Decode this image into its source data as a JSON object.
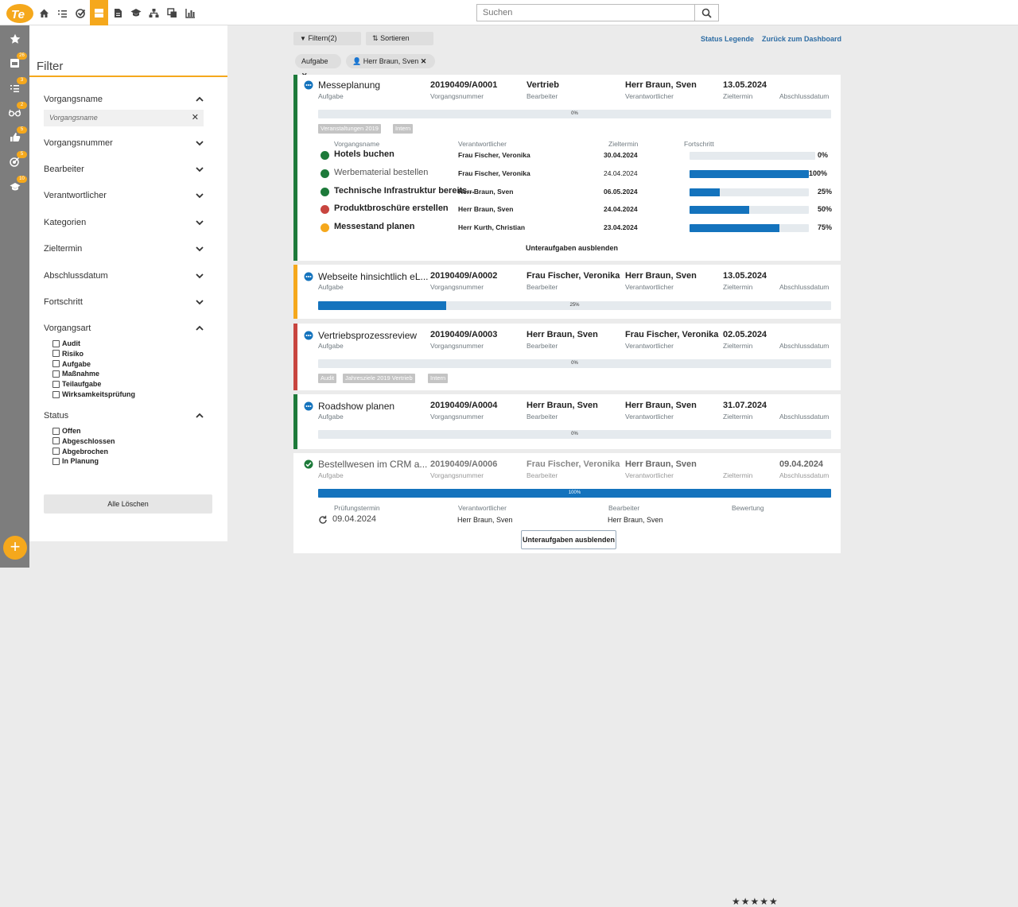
{
  "colors": {
    "accent": "#f5a81c",
    "green": "#1d7a3a",
    "red": "#c8453f",
    "orange": "#f5a81c",
    "blue": "#1473bd"
  },
  "search": {
    "placeholder": "Suchen",
    "value": "Suchen"
  },
  "top_nav": [
    "home-icon",
    "list-icon",
    "check-circle-icon",
    "board-icon",
    "document-icon",
    "graduation-cap-icon",
    "hierarchy-icon",
    "copy-icon",
    "bar-chart-icon"
  ],
  "left_nav": [
    {
      "icon": "star-icon",
      "badge": ""
    },
    {
      "icon": "inbox-icon",
      "badge": "26"
    },
    {
      "icon": "checklist-icon",
      "badge": "3"
    },
    {
      "icon": "glasses-icon",
      "badge": "2"
    },
    {
      "icon": "thumbs-icon",
      "badge": "5"
    },
    {
      "icon": "target-icon",
      "badge": "5"
    },
    {
      "icon": "graduation-cap-icon",
      "badge": "10"
    }
  ],
  "filter": {
    "title": "Filter",
    "vorgangsname": "Vorgangsname",
    "vorgangsname_placeholder": "Vorgangsname",
    "sections": [
      "Vorgangsnummer",
      "Bearbeiter",
      "Verantwortlicher",
      "Kategorien",
      "Zieltermin",
      "Abschlussdatum",
      "Fortschritt"
    ],
    "vorgangsart_label": "Vorgangsart",
    "vorgangsart": [
      "Audit",
      "Risiko",
      "Aufgabe",
      "Maßnahme",
      "Teilaufgabe",
      "Wirksamkeitsprüfung"
    ],
    "status_label": "Status",
    "status": [
      "Offen",
      "Abgeschlossen",
      "Abgebrochen",
      "In Planung"
    ],
    "clear": "Alle Löschen"
  },
  "toolbar": {
    "filter": "Filtern(2)",
    "sort": "Sortieren",
    "legend": "Status Legende",
    "back": "Zurück zum Dashboard"
  },
  "chips": [
    "Aufgabe",
    "Herr Braun, Sven"
  ],
  "labels": {
    "number": "Vorgangsnummer",
    "editor": "Bearbeiter",
    "owner": "Verantwortlicher",
    "due": "Zieltermin",
    "closed": "Abschlussdatum",
    "sub_name": "Vorgangsname",
    "sub_owner": "Verantwortlicher",
    "sub_due": "Zieltermin",
    "sub_progress": "Fortschritt",
    "hide_sub": "Unteraufgaben ausblenden",
    "review_date": "Prüfungstermin",
    "rating": "Bewertung"
  },
  "cards": [
    {
      "title": "Messeplanung",
      "type": "Aufgabe",
      "number": "20190409/A0001",
      "editor": "Vertrieb",
      "owner": "Herr Braun, Sven",
      "due": "13.05.2024",
      "closed": "",
      "progress": 0,
      "progress_label": "0%",
      "tags": [
        "Veranstaltungen 2019",
        "Intern"
      ],
      "subtasks": [
        {
          "name": "Hotels buchen",
          "owner": "Frau Fischer, Veronika",
          "due": "30.04.2024",
          "progress": 0,
          "label": "0%",
          "status": "green",
          "done": false
        },
        {
          "name": "Werbematerial bestellen",
          "owner": "Frau Fischer, Veronika",
          "due": "24.04.2024",
          "progress": 100,
          "label": "100%",
          "status": "green",
          "done": true
        },
        {
          "name": "Technische Infrastruktur bereits...",
          "owner": "Herr Braun, Sven",
          "due": "06.05.2024",
          "progress": 25,
          "label": "25%",
          "status": "green",
          "done": false
        },
        {
          "name": "Produktbroschüre erstellen",
          "owner": "Herr Braun, Sven",
          "due": "24.04.2024",
          "progress": 50,
          "label": "50%",
          "status": "red",
          "done": false
        },
        {
          "name": "Messestand planen",
          "owner": "Herr Kurth, Christian",
          "due": "23.04.2024",
          "progress": 75,
          "label": "75%",
          "status": "orange",
          "done": false
        }
      ]
    },
    {
      "title": "Webseite hinsichtlich eL...",
      "type": "Aufgabe",
      "number": "20190409/A0002",
      "editor": "Frau Fischer, Veronika",
      "owner": "Herr Braun, Sven",
      "due": "13.05.2024",
      "closed": "",
      "progress": 25,
      "progress_label": "25%",
      "tags": []
    },
    {
      "title": "Vertriebsprozessreview",
      "type": "Aufgabe",
      "number": "20190409/A0003",
      "editor": "Herr Braun, Sven",
      "owner": "Frau Fischer, Veronika",
      "due": "02.05.2024",
      "closed": "",
      "progress": 0,
      "progress_label": "0%",
      "tags": [
        "Audit",
        "Jahresziele 2019 Vertrieb",
        "Intern"
      ]
    },
    {
      "title": "Roadshow planen",
      "type": "Aufgabe",
      "number": "20190409/A0004",
      "editor": "Herr Braun, Sven",
      "owner": "Herr Braun, Sven",
      "due": "31.07.2024",
      "closed": "",
      "progress": 0,
      "progress_label": "0%",
      "tags": []
    },
    {
      "title": "Bestellwesen im CRM a...",
      "type": "Aufgabe",
      "number": "20190409/A0006",
      "editor": "Frau Fischer, Veronika",
      "owner": "Herr Braun, Sven",
      "due": "",
      "closed": "09.04.2024",
      "progress": 100,
      "progress_label": "100%",
      "tags": [],
      "review": {
        "date": "09.04.2024",
        "owner": "Herr Braun, Sven",
        "editor": "Herr Braun, Sven",
        "rating": "★★★★★"
      }
    }
  ]
}
